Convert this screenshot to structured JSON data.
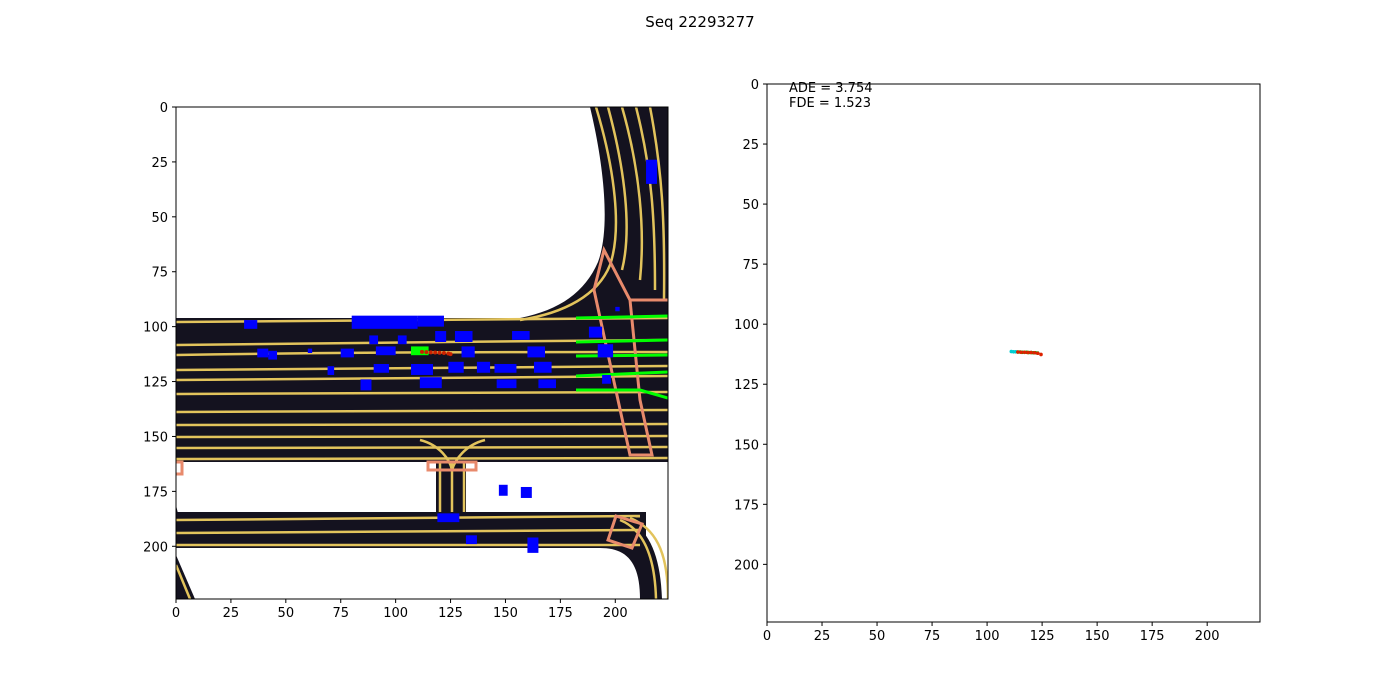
{
  "figure": {
    "title": "Seq 22293277"
  },
  "chart_data": [
    {
      "type": "image",
      "panel": "map",
      "x_ticks": [
        0,
        25,
        50,
        75,
        100,
        125,
        150,
        175,
        200
      ],
      "y_ticks": [
        0,
        25,
        50,
        75,
        100,
        125,
        150,
        175,
        200
      ],
      "xlim": [
        0,
        224
      ],
      "ylim": [
        224,
        0
      ],
      "colors": {
        "road": "#14121f",
        "lane": "#e2c35c",
        "crosswalk": "#e88a6c",
        "vehicle": "#0000ff",
        "ego": "#00ff00",
        "path": "#00ff00",
        "trajectory": "#cc2200"
      },
      "vehicles": [
        [
          31,
          97,
          6,
          4
        ],
        [
          37,
          110,
          5,
          4
        ],
        [
          42,
          111,
          4,
          4
        ],
        [
          60,
          110,
          2,
          2
        ],
        [
          75,
          110,
          6,
          4
        ],
        [
          80,
          95,
          30,
          6
        ],
        [
          88,
          104,
          4,
          4
        ],
        [
          91,
          109,
          9,
          4
        ],
        [
          101,
          104,
          4,
          4
        ],
        [
          110,
          95,
          12,
          5
        ],
        [
          118,
          102,
          5,
          5
        ],
        [
          127,
          102,
          8,
          5
        ],
        [
          130,
          109,
          6,
          5
        ],
        [
          69,
          118,
          3,
          4
        ],
        [
          84,
          124,
          5,
          5
        ],
        [
          90,
          117,
          7,
          4
        ],
        [
          107,
          117,
          10,
          5
        ],
        [
          111,
          123,
          10,
          5
        ],
        [
          124,
          116,
          7,
          5
        ],
        [
          137,
          116,
          6,
          5
        ],
        [
          145,
          117,
          10,
          4
        ],
        [
          146,
          124,
          9,
          4
        ],
        [
          153,
          102,
          8,
          4
        ],
        [
          160,
          109,
          8,
          5
        ],
        [
          163,
          116,
          8,
          5
        ],
        [
          165,
          124,
          8,
          4
        ],
        [
          188,
          100,
          6,
          5
        ],
        [
          192,
          108,
          7,
          6
        ],
        [
          194,
          122,
          4,
          4
        ],
        [
          200,
          91,
          2,
          2
        ],
        [
          214,
          24,
          5,
          11
        ],
        [
          147,
          172,
          4,
          5
        ],
        [
          157,
          173,
          5,
          5
        ],
        [
          119,
          185,
          10,
          4
        ],
        [
          132,
          195,
          5,
          4
        ],
        [
          160,
          196,
          5,
          7
        ]
      ],
      "ego": [
        107,
        109,
        8,
        4
      ],
      "trajectory_x": [
        112,
        114,
        116,
        118,
        120,
        122,
        124,
        125
      ],
      "trajectory_y": [
        111.5,
        111.6,
        111.7,
        111.8,
        111.9,
        112.0,
        112.2,
        112.5
      ]
    },
    {
      "type": "scatter",
      "panel": "trajectory",
      "annotations": [
        "ADE = 3.754",
        "FDE = 1.523"
      ],
      "xlim": [
        0,
        224
      ],
      "ylim": [
        224,
        0
      ],
      "x_ticks": [
        0,
        25,
        50,
        75,
        100,
        125,
        150,
        175,
        200
      ],
      "y_ticks": [
        0,
        25,
        50,
        75,
        100,
        125,
        150,
        175,
        200
      ],
      "series": [
        {
          "color": "#00ced1",
          "x": [
            111,
            112,
            113
          ],
          "y": [
            111.4,
            111.5,
            111.5
          ]
        },
        {
          "color": "#00aa00",
          "x": [
            114,
            115,
            116,
            117,
            118,
            119,
            120,
            121,
            122,
            123
          ],
          "y": [
            111.6,
            111.6,
            111.7,
            111.7,
            111.7,
            111.8,
            111.8,
            111.9,
            111.9,
            112.0
          ]
        },
        {
          "color": "#dd2200",
          "x": [
            114,
            115.5,
            117,
            118.5,
            120,
            121.5,
            123,
            124.5
          ],
          "y": [
            111.6,
            111.7,
            111.7,
            111.8,
            111.8,
            111.9,
            112.1,
            112.6
          ]
        }
      ]
    }
  ]
}
